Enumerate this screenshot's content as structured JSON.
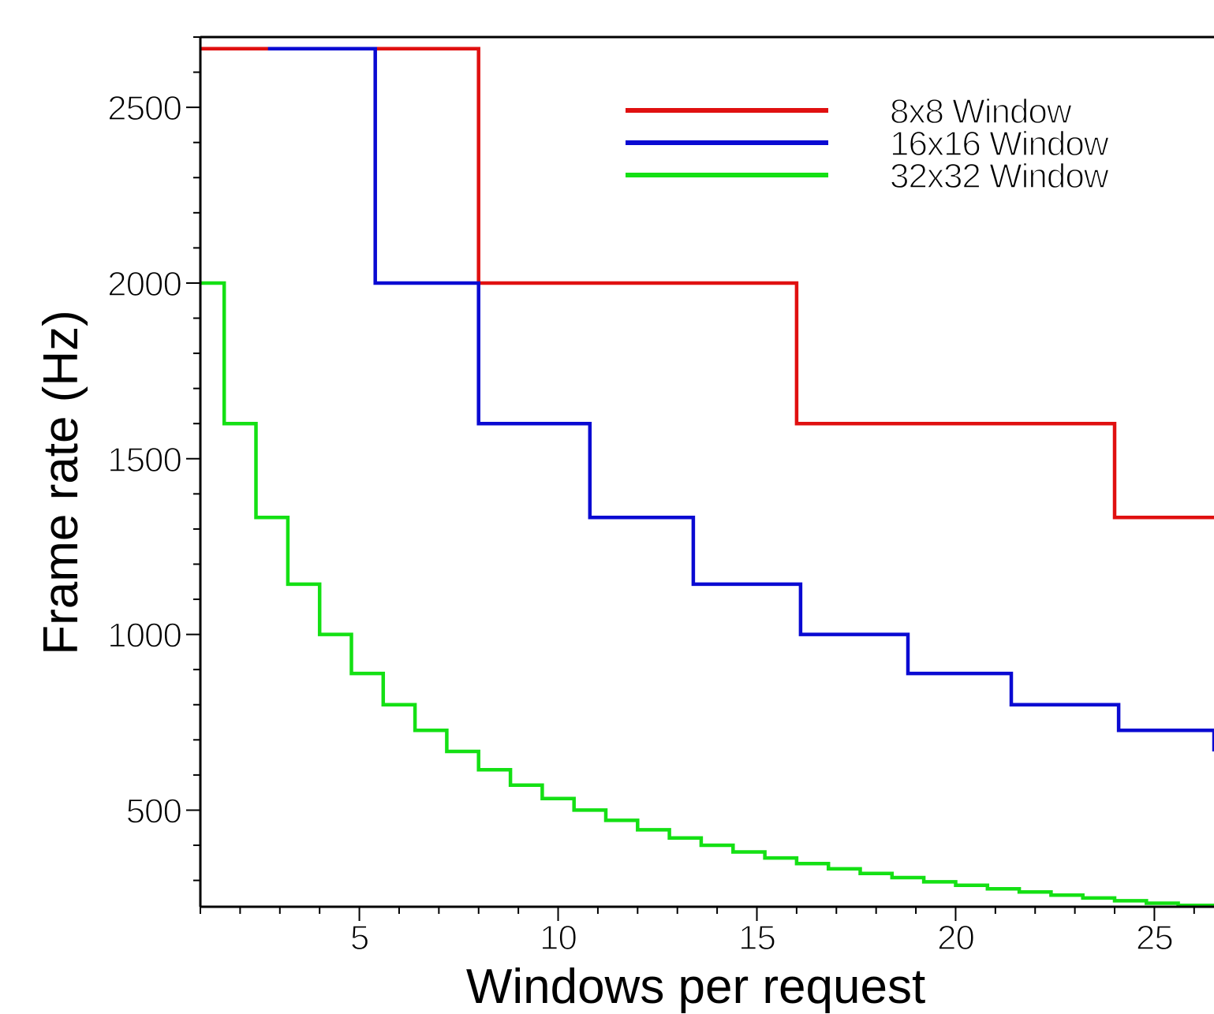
{
  "chart_data": {
    "type": "line",
    "title": "",
    "xlabel": "Windows per request",
    "ylabel": "Frame rate (Hz)",
    "xlim": [
      1,
      26.5
    ],
    "ylim": [
      225,
      2700
    ],
    "x_ticks": [
      5,
      10,
      15,
      20,
      25
    ],
    "x_tick_labels": [
      "5",
      "10",
      "15",
      "20",
      "25"
    ],
    "y_ticks": [
      500,
      1000,
      1500,
      2000,
      2500
    ],
    "y_tick_labels": [
      "500",
      "1000",
      "1500",
      "2000",
      "2500"
    ],
    "grid": false,
    "legend_position": "top-right",
    "step": true,
    "series": [
      {
        "name": "8x8 Window",
        "color": "#e01010",
        "x": [
          1,
          8,
          16,
          24,
          26.5
        ],
        "values": [
          2667,
          2000,
          1600,
          1333,
          1333
        ]
      },
      {
        "name": "16x16 Window",
        "color": "#0a0ad2",
        "x": [
          2.7,
          5.4,
          8,
          10.8,
          13.4,
          16.1,
          18.8,
          21.4,
          24.1,
          26.5
        ],
        "values": [
          2667,
          2000,
          1600,
          1333,
          1143,
          1000,
          889,
          800,
          727,
          667
        ]
      },
      {
        "name": "32x32 Window",
        "color": "#14e014",
        "x": [
          1,
          1.6,
          2.4,
          3.2,
          4,
          4.8,
          5.6,
          6.4,
          7.2,
          8,
          8.8,
          9.6,
          10.4,
          11.2,
          12,
          12.8,
          13.6,
          14.4,
          15.2,
          16,
          16.8,
          17.6,
          18.4,
          19.2,
          20,
          20.8,
          21.6,
          22.4,
          23.2,
          24,
          24.8,
          25.6,
          26.5
        ],
        "values": [
          2000,
          1600,
          1333,
          1143,
          1000,
          889,
          800,
          727,
          667,
          615,
          571,
          533,
          500,
          471,
          444,
          421,
          400,
          381,
          364,
          348,
          333,
          320,
          308,
          296,
          286,
          276,
          267,
          258,
          250,
          242,
          235,
          229,
          229
        ]
      }
    ]
  }
}
